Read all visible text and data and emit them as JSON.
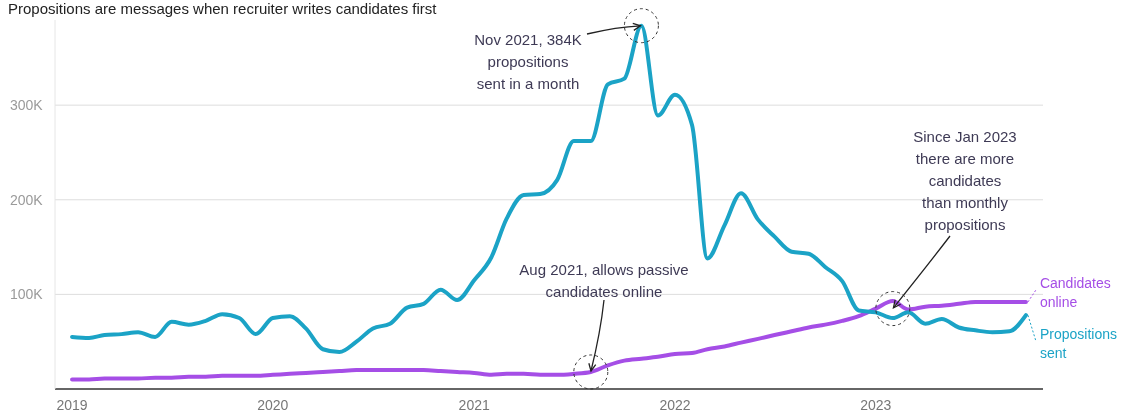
{
  "chart_data": {
    "type": "line",
    "title": "Propositions are messages when recruiter writes candidates first",
    "x": [
      "2019-01",
      "2019-02",
      "2019-03",
      "2019-04",
      "2019-05",
      "2019-06",
      "2019-07",
      "2019-08",
      "2019-09",
      "2019-10",
      "2019-11",
      "2019-12",
      "2020-01",
      "2020-02",
      "2020-03",
      "2020-04",
      "2020-05",
      "2020-06",
      "2020-07",
      "2020-08",
      "2020-09",
      "2020-10",
      "2020-11",
      "2020-12",
      "2021-01",
      "2021-02",
      "2021-03",
      "2021-04",
      "2021-05",
      "2021-06",
      "2021-07",
      "2021-08",
      "2021-09",
      "2021-10",
      "2021-11",
      "2021-12",
      "2022-01",
      "2022-02",
      "2022-03",
      "2022-04",
      "2022-05",
      "2022-06",
      "2022-07",
      "2022-08",
      "2022-09",
      "2022-10",
      "2022-11",
      "2022-12",
      "2023-01",
      "2023-02",
      "2023-03",
      "2023-04",
      "2023-05",
      "2023-06",
      "2023-07",
      "2023-08",
      "2023-09",
      "2023-10"
    ],
    "series": [
      {
        "name": "Candidates online",
        "color": "#a54ee6",
        "values": [
          10000,
          10000,
          11000,
          11000,
          11000,
          12000,
          12000,
          13000,
          13000,
          14000,
          14000,
          14000,
          15000,
          16000,
          17000,
          18000,
          19000,
          20000,
          20000,
          20000,
          20000,
          20000,
          19000,
          18000,
          17000,
          15000,
          16000,
          16000,
          15000,
          15000,
          16000,
          18000,
          25000,
          30000,
          32000,
          34000,
          37000,
          38000,
          42000,
          45000,
          49000,
          53000,
          57000,
          61000,
          65000,
          68000,
          72000,
          77000,
          85000,
          93000,
          84000,
          87000,
          88000,
          90000,
          92000,
          92000,
          92000,
          92000
        ]
      },
      {
        "name": "Propositions sent",
        "color": "#1ba3c6",
        "values": [
          55000,
          54000,
          57000,
          58000,
          60000,
          55000,
          71000,
          68000,
          72000,
          79000,
          75000,
          58000,
          75000,
          77000,
          64000,
          42000,
          39000,
          50000,
          64000,
          69000,
          86000,
          90000,
          105000,
          94000,
          115000,
          139000,
          180000,
          205000,
          206000,
          221000,
          262000,
          262000,
          322000,
          328000,
          384000,
          289000,
          311000,
          279000,
          138000,
          173000,
          207000,
          179000,
          161000,
          145000,
          143000,
          129000,
          114000,
          83000,
          81000,
          75000,
          81000,
          69000,
          74000,
          65000,
          62000,
          60000,
          61000,
          78000
        ]
      }
    ],
    "xlim": [
      "2018-12",
      "2023-11"
    ],
    "xticks": [
      "2019",
      "2020",
      "2021",
      "2022",
      "2023"
    ],
    "ylim": [
      0,
      390000
    ],
    "yticks": [
      {
        "value": 0,
        "label": null
      },
      {
        "value": 100000,
        "label": "100K"
      },
      {
        "value": 200000,
        "label": "200K"
      },
      {
        "value": 300000,
        "label": "300K"
      }
    ],
    "grid": "y",
    "legend": "right",
    "annotations": [
      {
        "text": "Nov 2021, 384K propositions sent in a month",
        "x": "2021-11",
        "y": 384000
      },
      {
        "text": "Aug 2021, allows passive candidates online",
        "x": "2021-08",
        "y": 18000
      },
      {
        "text": "Since Jan 2023 there are more candidates than monthly propositions",
        "x": "2023-02",
        "y": 85000
      }
    ]
  }
}
